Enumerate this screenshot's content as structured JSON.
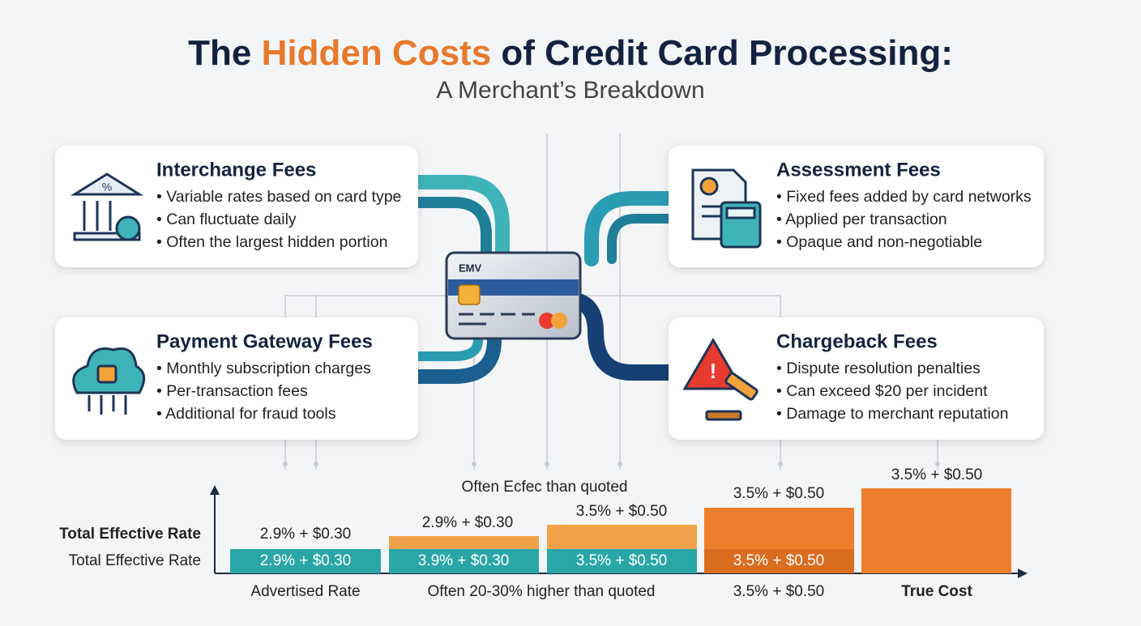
{
  "header": {
    "title": {
      "lead": "The",
      "highlight": "Hidden Costs",
      "rest": "of Credit Card Processing:"
    },
    "subtitle": "A Merchant’s Breakdown"
  },
  "cards": [
    {
      "title": "Interchange Fees",
      "bullets": [
        "• Variable rates based on card type",
        "• Can fluctuate daily",
        "• Often the largest hidden portion"
      ]
    },
    {
      "title": "Assessment Fees",
      "bullets": [
        "• Fixed fees added by card networks",
        "• Applied per transaction",
        "• Opaque and non-negotiable"
      ]
    },
    {
      "title": "Payment Gateway Fees",
      "bullets": [
        "• Monthly subscription charges",
        "• Per-transaction fees",
        "• Additional for fraud tools"
      ]
    },
    {
      "title": "Chargeback Fees",
      "bullets": [
        "• Dispute resolution penalties",
        "• Can exceed $20 per incident",
        "• Damage to merchant reputation"
      ]
    }
  ],
  "credit_card": {
    "label": "EMV"
  },
  "rate_chart": {
    "row_labels": [
      "Total Effective Rate",
      "Total Effective Rate"
    ],
    "note": "Often Ecfec than quoted",
    "columns": [
      {
        "top_label": "2.9% + $0.30",
        "base_label": "2.9% + $0.30",
        "bottom_label": "Advertised Rate"
      },
      {
        "top_label": "2.9% + $0.30",
        "base_label": "3.9% + $0.30",
        "bottom_label": "Often 20-30% higher than quoted"
      },
      {
        "top_label": "3.5% + $0.50",
        "base_label": "3.5% + $0.50"
      },
      {
        "top_label": "3.5% + $0.50",
        "base_label": "3.5% + $0.50",
        "bottom_label": "3.5% + $0.50"
      },
      {
        "top_label": "3.5% + $0.50",
        "bottom_label": "True Cost"
      }
    ]
  }
}
